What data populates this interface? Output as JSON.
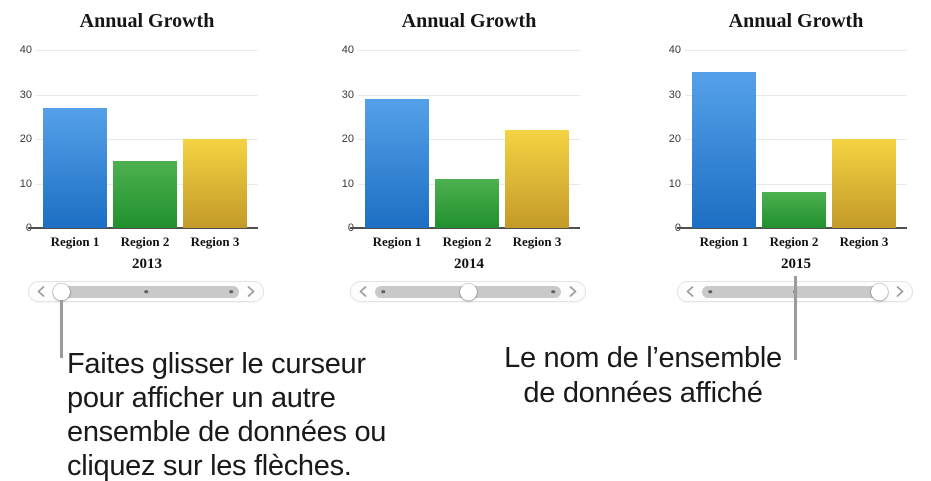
{
  "chart_data": [
    {
      "type": "bar",
      "title": "Annual Growth",
      "categories": [
        "Region 1",
        "Region 2",
        "Region 3"
      ],
      "values": [
        27,
        15,
        20
      ],
      "dataset_label": "2013",
      "ylim": [
        0,
        40
      ],
      "yticks": [
        0,
        10,
        20,
        30,
        40
      ],
      "grid": true,
      "slider": {
        "thumb_position": 0,
        "tick_positions": [
          0,
          0.5,
          1
        ]
      }
    },
    {
      "type": "bar",
      "title": "Annual Growth",
      "categories": [
        "Region 1",
        "Region 2",
        "Region 3"
      ],
      "values": [
        29,
        11,
        22
      ],
      "dataset_label": "2014",
      "ylim": [
        0,
        40
      ],
      "yticks": [
        0,
        10,
        20,
        30,
        40
      ],
      "grid": true,
      "slider": {
        "thumb_position": 0.5,
        "tick_positions": [
          0,
          0.5,
          1
        ]
      }
    },
    {
      "type": "bar",
      "title": "Annual Growth",
      "categories": [
        "Region 1",
        "Region 2",
        "Region 3"
      ],
      "values": [
        35,
        8,
        20
      ],
      "dataset_label": "2015",
      "ylim": [
        0,
        40
      ],
      "yticks": [
        0,
        10,
        20,
        30,
        40
      ],
      "grid": true,
      "slider": {
        "thumb_position": 1,
        "tick_positions": [
          0,
          0.5,
          1
        ]
      }
    }
  ],
  "colors": {
    "bars": [
      {
        "name": "Region 1",
        "top": "#55a1e9",
        "bottom": "#1d6fc4"
      },
      {
        "name": "Region 2",
        "top": "#4eb150",
        "bottom": "#21902e"
      },
      {
        "name": "Region 3",
        "top": "#f5d342",
        "bottom": "#c39a2a"
      }
    ],
    "slider_track": "#c9c9c9",
    "callout_line": "#9b9b9b"
  },
  "icons": {
    "slider_left": "chevron-left-icon",
    "slider_right": "chevron-right-icon"
  },
  "captions": {
    "left": {
      "text": "Faites glisser le curseur\npour afficher un autre\nensemble de données ou\ncliquez sur les flèches."
    },
    "right": {
      "text": "Le nom de l’ensemble\nde données affiché"
    }
  }
}
